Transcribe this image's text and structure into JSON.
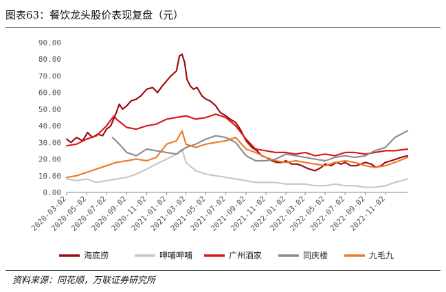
{
  "figure": {
    "title": "图表63：餐饮龙头股价表现复盘（元）",
    "source": "资料来源：同花顺，万联证券研究所"
  },
  "chart_data": {
    "type": "line",
    "ylim": [
      0,
      90
    ],
    "yticks": [
      "0.00",
      "10.00",
      "20.00",
      "30.00",
      "40.00",
      "50.00",
      "60.00",
      "70.00",
      "80.00",
      "90.00"
    ],
    "xlim": [
      "2020-03-02",
      "2023-01-09"
    ],
    "xticks": [
      "2020-03-02",
      "2020-05-02",
      "2020-07-02",
      "2020-09-02",
      "2020-11-02",
      "2021-01-02",
      "2021-03-02",
      "2021-05-02",
      "2021-07-02",
      "2021-09-02",
      "2021-11-02",
      "2022-01-02",
      "2022-03-02",
      "2022-05-02",
      "2022-07-02",
      "2022-09-02",
      "2022-11-02"
    ],
    "grid": false,
    "legend_position": "bottom",
    "series": [
      {
        "name": "海底捞",
        "color": "#9b0c0c",
        "x": [
          "2020-03-02",
          "2020-03-15",
          "2020-04-01",
          "2020-04-20",
          "2020-05-05",
          "2020-05-20",
          "2020-06-05",
          "2020-06-20",
          "2020-07-02",
          "2020-07-15",
          "2020-08-01",
          "2020-08-10",
          "2020-08-20",
          "2020-09-02",
          "2020-09-15",
          "2020-10-01",
          "2020-10-15",
          "2020-11-02",
          "2020-11-20",
          "2020-12-05",
          "2020-12-20",
          "2021-01-02",
          "2021-01-15",
          "2021-02-01",
          "2021-02-10",
          "2021-02-18",
          "2021-02-26",
          "2021-03-05",
          "2021-03-15",
          "2021-03-25",
          "2021-04-05",
          "2021-04-20",
          "2021-05-02",
          "2021-05-15",
          "2021-06-01",
          "2021-06-15",
          "2021-07-02",
          "2021-07-15",
          "2021-08-01",
          "2021-08-15",
          "2021-09-02",
          "2021-09-20",
          "2021-10-05",
          "2021-10-20",
          "2021-11-02",
          "2021-11-20",
          "2021-12-05",
          "2021-12-20",
          "2022-01-02",
          "2022-01-20",
          "2022-02-05",
          "2022-02-20",
          "2022-03-02",
          "2022-03-15",
          "2022-04-01",
          "2022-04-20",
          "2022-05-02",
          "2022-05-20",
          "2022-06-05",
          "2022-06-20",
          "2022-07-02",
          "2022-07-20",
          "2022-08-05",
          "2022-08-20",
          "2022-09-02",
          "2022-09-20",
          "2022-10-05",
          "2022-10-20",
          "2022-11-02",
          "2022-11-20",
          "2022-12-05",
          "2022-12-20",
          "2023-01-09"
        ],
        "values": [
          32,
          30,
          33,
          31,
          36,
          33,
          35,
          34,
          38,
          40,
          48,
          53,
          50,
          52,
          55,
          56,
          58,
          62,
          63,
          60,
          64,
          67,
          70,
          73,
          82,
          83,
          78,
          68,
          64,
          62,
          63,
          58,
          56,
          55,
          52,
          48,
          46,
          44,
          42,
          38,
          31,
          27,
          25,
          22,
          21,
          19,
          18,
          18,
          19,
          17,
          17,
          16,
          15,
          14,
          13,
          15,
          17,
          16,
          18,
          17,
          18,
          16,
          16,
          17,
          18,
          17,
          15,
          16,
          18,
          19,
          20,
          21,
          22
        ]
      },
      {
        "name": "呷哺呷哺",
        "color": "#c7c7c7",
        "x": [
          "2020-03-02",
          "2020-04-01",
          "2020-05-02",
          "2020-06-01",
          "2020-07-02",
          "2020-08-01",
          "2020-09-02",
          "2020-10-01",
          "2020-11-02",
          "2020-12-01",
          "2021-01-02",
          "2021-02-01",
          "2021-02-18",
          "2021-03-02",
          "2021-04-01",
          "2021-05-02",
          "2021-06-01",
          "2021-07-02",
          "2021-08-01",
          "2021-09-02",
          "2021-10-01",
          "2021-11-02",
          "2021-12-01",
          "2022-01-02",
          "2022-02-01",
          "2022-03-02",
          "2022-04-01",
          "2022-05-02",
          "2022-06-01",
          "2022-07-02",
          "2022-08-01",
          "2022-09-02",
          "2022-10-01",
          "2022-11-02",
          "2022-12-01",
          "2023-01-09"
        ],
        "values": [
          8,
          7,
          8,
          6,
          7,
          8,
          9,
          11,
          14,
          17,
          20,
          23,
          26,
          18,
          13,
          11,
          10,
          9,
          8,
          7,
          6,
          6,
          6,
          5,
          5,
          5,
          4,
          4,
          5,
          4,
          4,
          3,
          3,
          4,
          6,
          8
        ]
      },
      {
        "name": "广州酒家",
        "color": "#d61a1a",
        "x": [
          "2020-03-02",
          "2020-04-01",
          "2020-05-02",
          "2020-06-01",
          "2020-07-02",
          "2020-07-25",
          "2020-08-01",
          "2020-09-02",
          "2020-10-01",
          "2020-11-02",
          "2020-12-01",
          "2021-01-02",
          "2021-02-01",
          "2021-03-02",
          "2021-04-01",
          "2021-05-02",
          "2021-06-01",
          "2021-07-02",
          "2021-08-01",
          "2021-09-02",
          "2021-10-01",
          "2021-11-02",
          "2021-12-01",
          "2022-01-02",
          "2022-02-01",
          "2022-03-02",
          "2022-04-01",
          "2022-05-02",
          "2022-06-01",
          "2022-07-02",
          "2022-08-01",
          "2022-09-02",
          "2022-10-01",
          "2022-11-02",
          "2022-12-01",
          "2023-01-09"
        ],
        "values": [
          28,
          29,
          32,
          34,
          40,
          46,
          44,
          39,
          38,
          40,
          41,
          44,
          45,
          46,
          44,
          45,
          47,
          45,
          40,
          32,
          26,
          25,
          24,
          24,
          23,
          24,
          22,
          23,
          22,
          24,
          24,
          23,
          24,
          25,
          25,
          26
        ]
      },
      {
        "name": "同庆楼",
        "color": "#8c8c8c",
        "x": [
          "2020-07-20",
          "2020-08-10",
          "2020-09-02",
          "2020-10-01",
          "2020-11-02",
          "2020-12-01",
          "2021-01-02",
          "2021-02-01",
          "2021-03-02",
          "2021-04-01",
          "2021-05-02",
          "2021-06-01",
          "2021-07-02",
          "2021-08-01",
          "2021-09-02",
          "2021-10-01",
          "2021-11-02",
          "2021-12-01",
          "2022-01-02",
          "2022-02-01",
          "2022-03-02",
          "2022-04-01",
          "2022-05-02",
          "2022-06-01",
          "2022-07-02",
          "2022-08-01",
          "2022-09-02",
          "2022-10-01",
          "2022-11-02",
          "2022-12-01",
          "2023-01-09"
        ],
        "values": [
          33,
          29,
          24,
          22,
          26,
          25,
          24,
          23,
          27,
          29,
          32,
          34,
          33,
          30,
          22,
          19,
          19,
          20,
          23,
          22,
          21,
          20,
          19,
          21,
          22,
          21,
          22,
          25,
          27,
          33,
          37
        ]
      },
      {
        "name": "九毛九",
        "color": "#ec7a2c",
        "x": [
          "2020-03-02",
          "2020-04-01",
          "2020-05-02",
          "2020-06-01",
          "2020-07-02",
          "2020-08-01",
          "2020-09-02",
          "2020-10-01",
          "2020-11-02",
          "2020-12-01",
          "2021-01-02",
          "2021-02-01",
          "2021-02-18",
          "2021-03-02",
          "2021-04-01",
          "2021-05-02",
          "2021-06-01",
          "2021-07-02",
          "2021-08-01",
          "2021-09-02",
          "2021-10-01",
          "2021-11-02",
          "2021-12-01",
          "2022-01-02",
          "2022-02-01",
          "2022-03-02",
          "2022-04-01",
          "2022-05-02",
          "2022-06-01",
          "2022-07-02",
          "2022-08-01",
          "2022-09-02",
          "2022-10-01",
          "2022-11-02",
          "2022-12-01",
          "2023-01-09"
        ],
        "values": [
          9,
          10,
          12,
          14,
          16,
          18,
          19,
          20,
          19,
          21,
          29,
          31,
          37,
          29,
          27,
          29,
          30,
          31,
          33,
          26,
          24,
          21,
          19,
          18,
          19,
          18,
          17,
          16,
          18,
          19,
          18,
          16,
          15,
          16,
          18,
          21
        ]
      }
    ]
  }
}
